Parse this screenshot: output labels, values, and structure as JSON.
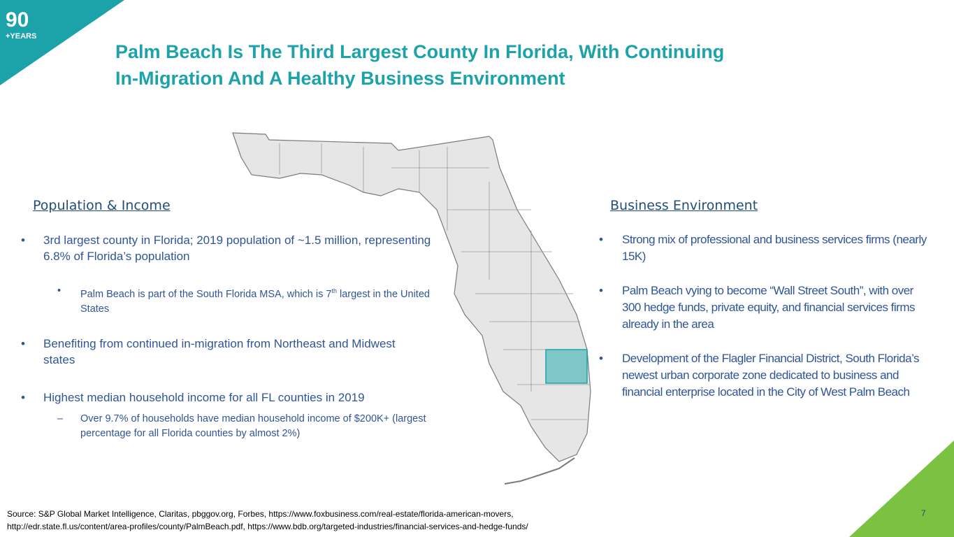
{
  "logo": {
    "number": "90",
    "caption": "+YEARS"
  },
  "header": {
    "title_lines": [
      "Palm Beach Is The Third Largest County In Florida, With Continuing",
      "In-Migration And A Healthy Business Environment"
    ]
  },
  "left": {
    "heading": "Population & Income",
    "bullets": [
      "3rd largest county in Florida; 2019 population of ~1.5 million, representing 6.8% of Florida’s population",
      [
        "Palm Beach is part of the South Florida MSA, which is 7",
        "th",
        " largest in the United States"
      ],
      "Benefiting from continued in-migration from Northeast  and Midwest states",
      "Highest median household income for all FL counties in 2019",
      "Over 9.7% of households have median household income of $200K+ (largest percentage for all Florida counties by almost 2%)"
    ]
  },
  "right": {
    "heading": "Business Environment",
    "bullets": [
      "Strong mix of professional and business services firms (nearly 15K)",
      "Palm Beach vying to become “Wall Street South”, with over 300 hedge funds, private equity, and financial services firms already in the area",
      "Development of the Flagler Financial District, South Florida’s newest urban corporate zone dedicated to business and financial enterprise located in the City of West Palm Beach"
    ]
  },
  "footer": {
    "source_lines": [
      "Source: S&P Global Market Intelligence, Claritas, pbggov.org, Forbes, https://www.foxbusiness.com/real-estate/florida-american-movers,",
      "http://edr.state.fl.us/content/area-profiles/county/PalmBeach.pdf, https://www.bdb.org/targeted-industries/financial-services-and-hedge-funds/"
    ],
    "page_number": "7"
  }
}
